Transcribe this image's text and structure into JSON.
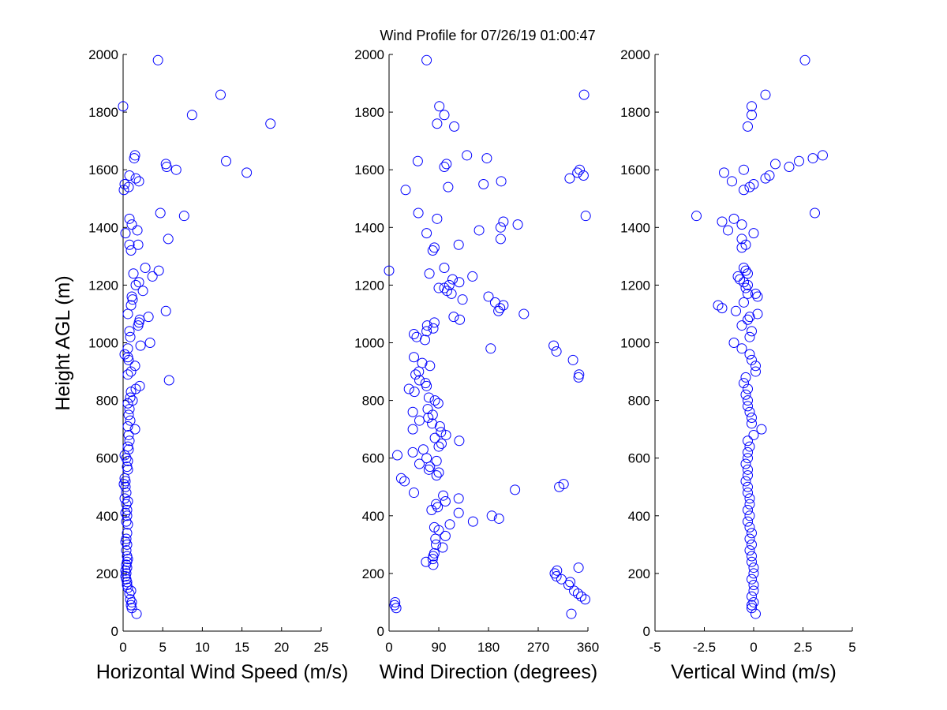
{
  "title": "Wind Profile for  07/26/19 01:00:47",
  "ylabel": "Height AGL (m)",
  "chart_data": [
    {
      "type": "scatter",
      "xlabel": "Horizontal Wind Speed (m/s)",
      "ylabel": "Height AGL (m)",
      "xlim": [
        0,
        25
      ],
      "ylim": [
        0,
        2000
      ],
      "xticks": [
        "0",
        "5",
        "10",
        "15",
        "20",
        "25"
      ],
      "yticks": [
        "0",
        "200",
        "400",
        "600",
        "800",
        "1000",
        "1200",
        "1400",
        "1600",
        "1800",
        "2000"
      ],
      "marker_color": "#0000ff",
      "points": [
        [
          1.7,
          60
        ],
        [
          1.1,
          80
        ],
        [
          1.0,
          90
        ],
        [
          1.1,
          100
        ],
        [
          0.9,
          110
        ],
        [
          0.8,
          130
        ],
        [
          1.0,
          140
        ],
        [
          0.6,
          150
        ],
        [
          0.5,
          160
        ],
        [
          0.5,
          170
        ],
        [
          0.4,
          180
        ],
        [
          0.3,
          190
        ],
        [
          0.4,
          200
        ],
        [
          0.3,
          210
        ],
        [
          0.5,
          220
        ],
        [
          0.4,
          230
        ],
        [
          0.5,
          240
        ],
        [
          0.6,
          250
        ],
        [
          0.5,
          260
        ],
        [
          0.4,
          280
        ],
        [
          0.5,
          300
        ],
        [
          0.3,
          310
        ],
        [
          0.4,
          320
        ],
        [
          0.5,
          340
        ],
        [
          0.6,
          370
        ],
        [
          0.4,
          380
        ],
        [
          0.5,
          400
        ],
        [
          0.3,
          410
        ],
        [
          0.5,
          420
        ],
        [
          0.4,
          440
        ],
        [
          0.6,
          450
        ],
        [
          0.2,
          460
        ],
        [
          0.4,
          480
        ],
        [
          0.3,
          500
        ],
        [
          0.1,
          510
        ],
        [
          0.3,
          520
        ],
        [
          0.2,
          530
        ],
        [
          0.6,
          560
        ],
        [
          0.5,
          570
        ],
        [
          0.6,
          590
        ],
        [
          0.4,
          600
        ],
        [
          0.2,
          610
        ],
        [
          0.7,
          630
        ],
        [
          0.6,
          640
        ],
        [
          0.8,
          660
        ],
        [
          0.7,
          680
        ],
        [
          1.5,
          700
        ],
        [
          0.6,
          710
        ],
        [
          0.9,
          730
        ],
        [
          0.7,
          750
        ],
        [
          0.8,
          770
        ],
        [
          0.6,
          790
        ],
        [
          1.2,
          800
        ],
        [
          0.9,
          810
        ],
        [
          1.0,
          830
        ],
        [
          1.6,
          840
        ],
        [
          2.1,
          850
        ],
        [
          5.8,
          870
        ],
        [
          0.6,
          890
        ],
        [
          1.0,
          900
        ],
        [
          1.5,
          920
        ],
        [
          0.7,
          940
        ],
        [
          0.6,
          950
        ],
        [
          0.2,
          960
        ],
        [
          0.6,
          980
        ],
        [
          2.2,
          990
        ],
        [
          3.4,
          1000
        ],
        [
          0.9,
          1020
        ],
        [
          0.8,
          1040
        ],
        [
          1.9,
          1060
        ],
        [
          2.0,
          1070
        ],
        [
          2.1,
          1080
        ],
        [
          3.2,
          1090
        ],
        [
          0.6,
          1100
        ],
        [
          5.4,
          1110
        ],
        [
          1.0,
          1130
        ],
        [
          1.2,
          1150
        ],
        [
          1.1,
          1160
        ],
        [
          2.5,
          1180
        ],
        [
          1.6,
          1200
        ],
        [
          2.0,
          1210
        ],
        [
          3.7,
          1230
        ],
        [
          1.3,
          1240
        ],
        [
          4.5,
          1250
        ],
        [
          2.8,
          1260
        ],
        [
          1.0,
          1320
        ],
        [
          0.8,
          1340
        ],
        [
          1.9,
          1340
        ],
        [
          5.7,
          1360
        ],
        [
          0.3,
          1380
        ],
        [
          1.8,
          1390
        ],
        [
          1.1,
          1410
        ],
        [
          0.8,
          1430
        ],
        [
          7.7,
          1440
        ],
        [
          4.7,
          1450
        ],
        [
          0.1,
          1530
        ],
        [
          0.7,
          1540
        ],
        [
          0.2,
          1550
        ],
        [
          2.0,
          1560
        ],
        [
          1.6,
          1570
        ],
        [
          0.8,
          1580
        ],
        [
          15.6,
          1590
        ],
        [
          6.7,
          1600
        ],
        [
          5.5,
          1610
        ],
        [
          5.4,
          1620
        ],
        [
          13.0,
          1630
        ],
        [
          1.4,
          1640
        ],
        [
          1.5,
          1650
        ],
        [
          18.6,
          1760
        ],
        [
          8.7,
          1790
        ],
        [
          0.0,
          1820
        ],
        [
          12.3,
          1860
        ],
        [
          4.4,
          1980
        ]
      ]
    },
    {
      "type": "scatter",
      "xlabel": "Wind Direction (degrees)",
      "ylabel": "",
      "xlim": [
        0,
        360
      ],
      "ylim": [
        0,
        2000
      ],
      "xticks": [
        "0",
        "90",
        "180",
        "270",
        "360"
      ],
      "yticks": [
        "0",
        "200",
        "400",
        "600",
        "800",
        "1000",
        "1200",
        "1400",
        "1600",
        "1800",
        "2000"
      ],
      "marker_color": "#0000ff",
      "points": [
        [
          330,
          60
        ],
        [
          13,
          80
        ],
        [
          10,
          90
        ],
        [
          11,
          100
        ],
        [
          355,
          110
        ],
        [
          348,
          120
        ],
        [
          342,
          130
        ],
        [
          335,
          140
        ],
        [
          325,
          160
        ],
        [
          328,
          170
        ],
        [
          312,
          180
        ],
        [
          303,
          190
        ],
        [
          300,
          200
        ],
        [
          304,
          210
        ],
        [
          343,
          220
        ],
        [
          80,
          230
        ],
        [
          67,
          240
        ],
        [
          79,
          250
        ],
        [
          80,
          260
        ],
        [
          82,
          270
        ],
        [
          97,
          290
        ],
        [
          85,
          300
        ],
        [
          84,
          320
        ],
        [
          102,
          330
        ],
        [
          90,
          350
        ],
        [
          82,
          360
        ],
        [
          110,
          370
        ],
        [
          152,
          380
        ],
        [
          199,
          390
        ],
        [
          186,
          400
        ],
        [
          126,
          410
        ],
        [
          77,
          420
        ],
        [
          88,
          430
        ],
        [
          85,
          440
        ],
        [
          102,
          450
        ],
        [
          126,
          460
        ],
        [
          98,
          470
        ],
        [
          45,
          480
        ],
        [
          228,
          490
        ],
        [
          308,
          500
        ],
        [
          316,
          510
        ],
        [
          28,
          520
        ],
        [
          22,
          530
        ],
        [
          86,
          540
        ],
        [
          90,
          550
        ],
        [
          72,
          560
        ],
        [
          74,
          570
        ],
        [
          55,
          580
        ],
        [
          86,
          590
        ],
        [
          68,
          600
        ],
        [
          15,
          610
        ],
        [
          43,
          620
        ],
        [
          62,
          630
        ],
        [
          90,
          640
        ],
        [
          95,
          650
        ],
        [
          127,
          660
        ],
        [
          83,
          670
        ],
        [
          103,
          680
        ],
        [
          94,
          690
        ],
        [
          43,
          700
        ],
        [
          92,
          710
        ],
        [
          78,
          720
        ],
        [
          55,
          730
        ],
        [
          71,
          740
        ],
        [
          79,
          750
        ],
        [
          43,
          760
        ],
        [
          70,
          770
        ],
        [
          89,
          790
        ],
        [
          83,
          800
        ],
        [
          72,
          810
        ],
        [
          46,
          830
        ],
        [
          36,
          840
        ],
        [
          68,
          850
        ],
        [
          66,
          860
        ],
        [
          55,
          870
        ],
        [
          48,
          890
        ],
        [
          54,
          900
        ],
        [
          74,
          920
        ],
        [
          60,
          930
        ],
        [
          45,
          950
        ],
        [
          184,
          980
        ],
        [
          303,
          970
        ],
        [
          298,
          990
        ],
        [
          65,
          1010
        ],
        [
          50,
          1020
        ],
        [
          45,
          1030
        ],
        [
          68,
          1040
        ],
        [
          80,
          1050
        ],
        [
          69,
          1060
        ],
        [
          82,
          1070
        ],
        [
          128,
          1080
        ],
        [
          117,
          1090
        ],
        [
          244,
          1100
        ],
        [
          198,
          1110
        ],
        [
          201,
          1120
        ],
        [
          207,
          1130
        ],
        [
          192,
          1140
        ],
        [
          180,
          1160
        ],
        [
          113,
          1170
        ],
        [
          105,
          1180
        ],
        [
          133,
          1150
        ],
        [
          90,
          1190
        ],
        [
          109,
          1200
        ],
        [
          127,
          1210
        ],
        [
          115,
          1220
        ],
        [
          151,
          1230
        ],
        [
          73,
          1240
        ],
        [
          0,
          1250
        ],
        [
          100,
          1260
        ],
        [
          126,
          1340
        ],
        [
          202,
          1360
        ],
        [
          79,
          1320
        ],
        [
          82,
          1330
        ],
        [
          68,
          1380
        ],
        [
          163,
          1390
        ],
        [
          202,
          1400
        ],
        [
          233,
          1410
        ],
        [
          207,
          1420
        ],
        [
          87,
          1430
        ],
        [
          356,
          1440
        ],
        [
          53,
          1450
        ],
        [
          30,
          1530
        ],
        [
          107,
          1540
        ],
        [
          171,
          1550
        ],
        [
          203,
          1560
        ],
        [
          327,
          1570
        ],
        [
          352,
          1580
        ],
        [
          341,
          1590
        ],
        [
          345,
          1600
        ],
        [
          100,
          1610
        ],
        [
          104,
          1620
        ],
        [
          52,
          1630
        ],
        [
          141,
          1650
        ],
        [
          177,
          1640
        ],
        [
          118,
          1750
        ],
        [
          87,
          1760
        ],
        [
          100,
          1790
        ],
        [
          91,
          1820
        ],
        [
          353,
          1860
        ],
        [
          68,
          1980
        ],
        [
          333,
          940
        ],
        [
          344,
          890
        ],
        [
          343,
          880
        ],
        [
          100,
          1190
        ]
      ]
    },
    {
      "type": "scatter",
      "xlabel": "Vertical Wind (m/s)",
      "ylabel": "",
      "xlim": [
        -5,
        5
      ],
      "ylim": [
        0,
        2000
      ],
      "xticks": [
        "-5",
        "-2.5",
        "0",
        "2.5",
        "5"
      ],
      "yticks": [
        "0",
        "200",
        "400",
        "600",
        "800",
        "1000",
        "1200",
        "1400",
        "1600",
        "1800",
        "2000"
      ],
      "marker_color": "#0000ff",
      "points": [
        [
          0.1,
          60
        ],
        [
          -0.1,
          80
        ],
        [
          -0.1,
          90
        ],
        [
          0.0,
          100
        ],
        [
          -0.1,
          120
        ],
        [
          0.0,
          140
        ],
        [
          0.0,
          160
        ],
        [
          -0.1,
          180
        ],
        [
          0.0,
          200
        ],
        [
          0.0,
          220
        ],
        [
          -0.1,
          240
        ],
        [
          -0.1,
          260
        ],
        [
          -0.2,
          280
        ],
        [
          -0.1,
          300
        ],
        [
          -0.2,
          320
        ],
        [
          -0.1,
          340
        ],
        [
          -0.2,
          360
        ],
        [
          -0.3,
          380
        ],
        [
          -0.2,
          400
        ],
        [
          -0.3,
          420
        ],
        [
          -0.2,
          440
        ],
        [
          -0.2,
          460
        ],
        [
          -0.3,
          480
        ],
        [
          -0.3,
          500
        ],
        [
          -0.4,
          520
        ],
        [
          -0.3,
          540
        ],
        [
          -0.3,
          560
        ],
        [
          -0.4,
          580
        ],
        [
          -0.3,
          600
        ],
        [
          -0.3,
          620
        ],
        [
          -0.2,
          640
        ],
        [
          -0.3,
          660
        ],
        [
          0.0,
          680
        ],
        [
          0.4,
          700
        ],
        [
          -0.1,
          720
        ],
        [
          -0.1,
          740
        ],
        [
          -0.2,
          760
        ],
        [
          -0.3,
          780
        ],
        [
          -0.3,
          800
        ],
        [
          -0.4,
          820
        ],
        [
          -0.3,
          840
        ],
        [
          -0.5,
          860
        ],
        [
          -0.4,
          880
        ],
        [
          0.1,
          900
        ],
        [
          0.1,
          920
        ],
        [
          -0.1,
          940
        ],
        [
          -0.2,
          960
        ],
        [
          -0.6,
          980
        ],
        [
          -1.0,
          1000
        ],
        [
          -0.2,
          1020
        ],
        [
          -0.1,
          1040
        ],
        [
          -0.6,
          1060
        ],
        [
          -0.3,
          1080
        ],
        [
          -0.2,
          1090
        ],
        [
          0.2,
          1100
        ],
        [
          -0.9,
          1110
        ],
        [
          -1.6,
          1120
        ],
        [
          -1.8,
          1130
        ],
        [
          -0.5,
          1140
        ],
        [
          0.2,
          1160
        ],
        [
          -0.3,
          1170
        ],
        [
          0.1,
          1170
        ],
        [
          -0.4,
          1190
        ],
        [
          -0.3,
          1200
        ],
        [
          -0.5,
          1210
        ],
        [
          -0.7,
          1220
        ],
        [
          -0.8,
          1230
        ],
        [
          -0.3,
          1240
        ],
        [
          -0.4,
          1250
        ],
        [
          -0.5,
          1260
        ],
        [
          -0.6,
          1330
        ],
        [
          -0.4,
          1340
        ],
        [
          -0.6,
          1360
        ],
        [
          0.0,
          1380
        ],
        [
          -1.3,
          1390
        ],
        [
          -0.6,
          1410
        ],
        [
          -1.6,
          1420
        ],
        [
          -1.0,
          1430
        ],
        [
          -2.9,
          1440
        ],
        [
          3.1,
          1450
        ],
        [
          -0.5,
          1530
        ],
        [
          -0.2,
          1540
        ],
        [
          0.0,
          1550
        ],
        [
          -1.1,
          1560
        ],
        [
          0.6,
          1570
        ],
        [
          0.8,
          1580
        ],
        [
          -1.5,
          1590
        ],
        [
          -0.5,
          1600
        ],
        [
          1.8,
          1610
        ],
        [
          1.1,
          1620
        ],
        [
          2.3,
          1630
        ],
        [
          3.0,
          1640
        ],
        [
          3.5,
          1650
        ],
        [
          -0.3,
          1750
        ],
        [
          -0.1,
          1790
        ],
        [
          -0.1,
          1820
        ],
        [
          0.6,
          1860
        ],
        [
          2.6,
          1980
        ]
      ]
    }
  ]
}
